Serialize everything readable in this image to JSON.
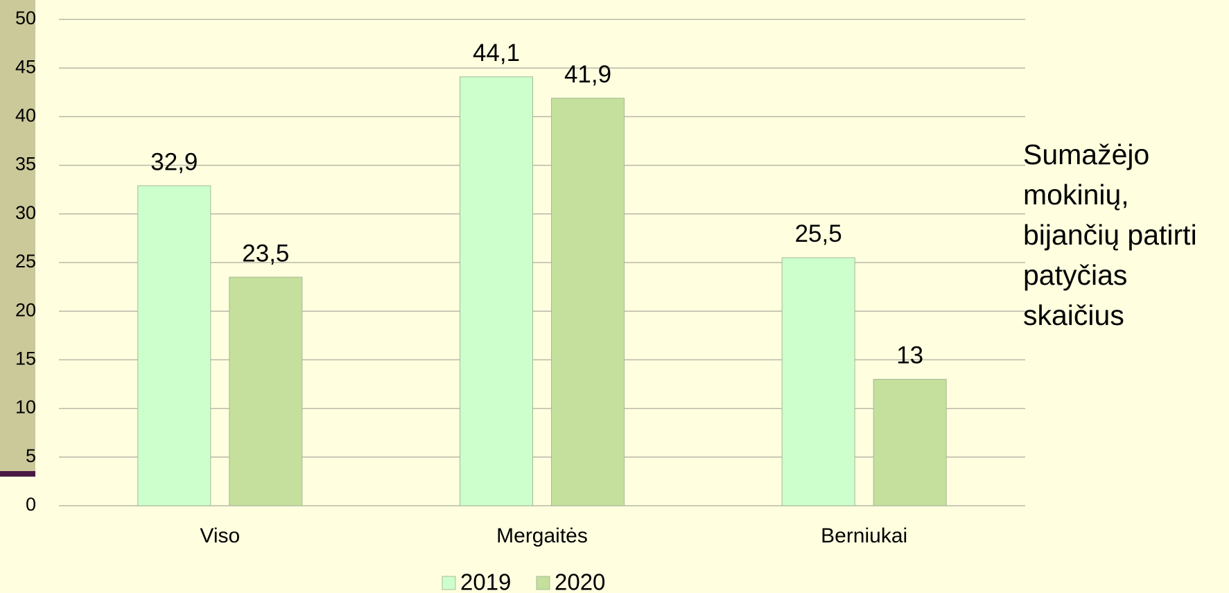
{
  "chart_data": {
    "type": "bar",
    "categories": [
      "Viso",
      "Mergaitės",
      "Berniukai"
    ],
    "series": [
      {
        "name": "2019",
        "color": "#ccffcc",
        "values": [
          32.9,
          44.1,
          25.5
        ],
        "value_labels": [
          "32,9",
          "44,1",
          "25,5"
        ]
      },
      {
        "name": "2020",
        "color": "#c4e09c",
        "values": [
          23.5,
          41.9,
          13
        ],
        "value_labels": [
          "23,5",
          "41,9",
          "13"
        ]
      }
    ],
    "ylim": [
      0,
      50
    ],
    "yticks": [
      0,
      5,
      10,
      15,
      20,
      25,
      30,
      35,
      40,
      45,
      50
    ],
    "grid": true,
    "legend": "bottom",
    "annotation": [
      "Sumažėjo",
      "mokinių,",
      "bijančių patirti",
      "patyčias",
      "skaičius"
    ]
  }
}
